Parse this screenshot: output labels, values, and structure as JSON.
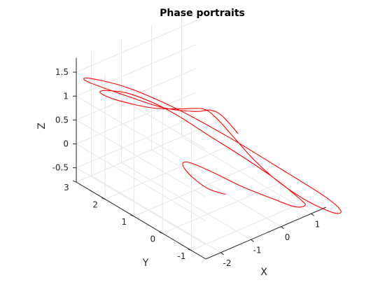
{
  "chart_data": {
    "type": "line",
    "projection": "3d",
    "title": "Phase portraits",
    "xlabel": "X",
    "ylabel": "Y",
    "zlabel": "Z",
    "xlim": [
      -2.5,
      1.5
    ],
    "ylim": [
      -1.5,
      3.0
    ],
    "zlim": [
      -0.8,
      1.8
    ],
    "x_ticks": [
      "-2",
      "-1",
      "0",
      "1"
    ],
    "y_ticks": [
      "-1",
      "0",
      "1",
      "2",
      "3"
    ],
    "z_ticks": [
      "-0.5",
      "0",
      "0.5",
      "1",
      "1.5"
    ],
    "grid": true,
    "series": [
      {
        "color": "#ff0000",
        "points": [
          [
            -0.8,
            -0.4,
            -0.3
          ],
          [
            -1.1,
            -0.15,
            -0.2
          ],
          [
            -1.3,
            0.1,
            -0.05
          ],
          [
            -1.4,
            0.35,
            0.1
          ],
          [
            -1.35,
            0.5,
            0.18
          ],
          [
            -1.15,
            0.45,
            0.15
          ],
          [
            -0.8,
            0.1,
            0.0
          ],
          [
            -0.3,
            -0.5,
            -0.25
          ],
          [
            0.2,
            -1.0,
            -0.45
          ],
          [
            0.6,
            -1.35,
            -0.6
          ],
          [
            0.85,
            -1.45,
            -0.6
          ],
          [
            0.8,
            -1.3,
            -0.5
          ],
          [
            0.5,
            -0.8,
            -0.2
          ],
          [
            0.05,
            -0.15,
            0.15
          ],
          [
            -0.45,
            0.55,
            0.5
          ],
          [
            -0.95,
            1.35,
            0.85
          ],
          [
            -1.45,
            2.15,
            1.05
          ],
          [
            -1.8,
            2.65,
            1.05
          ],
          [
            -1.9,
            2.8,
            0.98
          ],
          [
            -1.7,
            2.45,
            0.9
          ],
          [
            -1.2,
            1.75,
            0.85
          ],
          [
            -0.75,
            1.2,
            0.9
          ],
          [
            -0.4,
            0.8,
            0.95
          ],
          [
            -0.2,
            0.55,
            0.8
          ],
          [
            0.0,
            0.2,
            0.5
          ],
          [
            0.25,
            -0.3,
            0.1
          ],
          [
            0.55,
            -0.85,
            -0.25
          ],
          [
            0.95,
            -1.45,
            -0.55
          ],
          [
            1.35,
            -1.95,
            -0.72
          ],
          [
            1.45,
            -2.05,
            -0.65
          ],
          [
            1.2,
            -1.75,
            -0.4
          ],
          [
            0.55,
            -0.95,
            0.05
          ],
          [
            -0.2,
            0.1,
            0.55
          ],
          [
            -0.9,
            1.15,
            0.95
          ],
          [
            -1.55,
            2.2,
            1.2
          ],
          [
            -2.05,
            3.0,
            1.25
          ],
          [
            -2.1,
            3.05,
            1.18
          ],
          [
            -1.65,
            2.35,
            1.05
          ],
          [
            -1.05,
            1.5,
            0.9
          ],
          [
            -0.55,
            0.9,
            0.9
          ],
          [
            -0.3,
            0.65,
            0.95
          ],
          [
            -0.1,
            0.45,
            0.85
          ],
          [
            0.1,
            0.1,
            0.55
          ]
        ]
      }
    ]
  }
}
